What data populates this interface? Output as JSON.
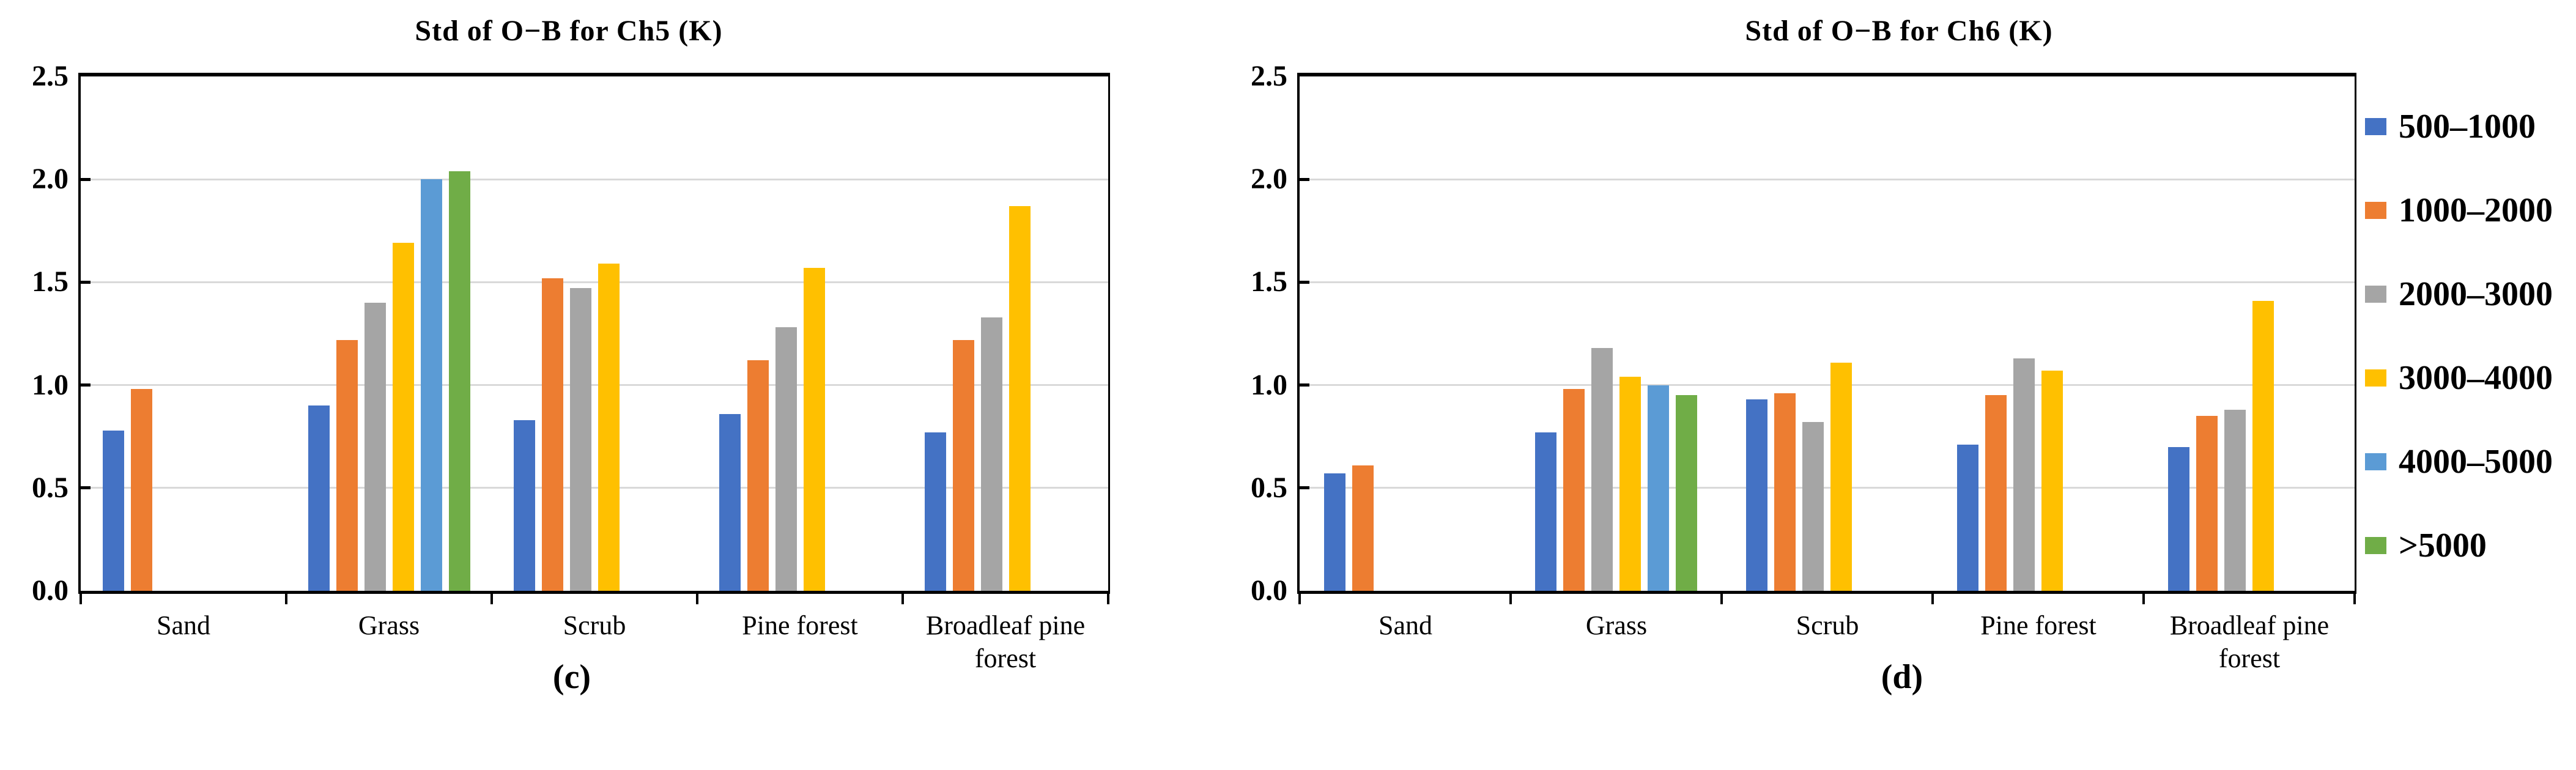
{
  "figure": {
    "background": "#ffffff",
    "grid_color": "#d9d9d9",
    "axis_color": "#000000"
  },
  "legend": {
    "position": "right",
    "entries": [
      {
        "label": "500–1000",
        "color": "#4472C4"
      },
      {
        "label": "1000–2000",
        "color": "#ED7D31"
      },
      {
        "label": "2000–3000",
        "color": "#A5A5A5"
      },
      {
        "label": "3000–4000",
        "color": "#FFC000"
      },
      {
        "label": "4000–5000",
        "color": "#5B9BD5"
      },
      {
        "label": ">5000",
        "color": "#70AD47"
      }
    ]
  },
  "chart_data": [
    {
      "type": "bar",
      "title": "Std of O−B for Ch5 (K)",
      "caption": "(c)",
      "xlabel": "",
      "ylabel": "",
      "ylim": [
        0,
        2.5
      ],
      "y_tick_labels": [
        "2.5",
        "2.0",
        "1.5",
        "1.0",
        "0.5",
        "0.0"
      ],
      "grid": true,
      "categories": [
        "Sand",
        "Grass",
        "Scrub",
        "Pine forest",
        "Broadleaf pine forest"
      ],
      "series": [
        {
          "name": "500–1000",
          "color": "#4472C4",
          "values": [
            0.78,
            0.9,
            0.83,
            0.86,
            0.77
          ]
        },
        {
          "name": "1000–2000",
          "color": "#ED7D31",
          "values": [
            0.98,
            1.22,
            1.52,
            1.12,
            1.22
          ]
        },
        {
          "name": "2000–3000",
          "color": "#A5A5A5",
          "values": [
            null,
            1.4,
            1.47,
            1.28,
            1.33
          ]
        },
        {
          "name": "3000–4000",
          "color": "#FFC000",
          "values": [
            null,
            1.69,
            1.59,
            1.57,
            1.87
          ]
        },
        {
          "name": "4000–5000",
          "color": "#5B9BD5",
          "values": [
            null,
            2.0,
            null,
            null,
            null
          ]
        },
        {
          "name": ">5000",
          "color": "#70AD47",
          "values": [
            null,
            2.04,
            null,
            null,
            null
          ]
        }
      ]
    },
    {
      "type": "bar",
      "title": "Std of O−B for Ch6 (K)",
      "caption": "(d)",
      "xlabel": "",
      "ylabel": "",
      "ylim": [
        0,
        2.5
      ],
      "y_tick_labels": [
        "2.5",
        "2.0",
        "1.5",
        "1.0",
        "0.5",
        "0.0"
      ],
      "grid": true,
      "categories": [
        "Sand",
        "Grass",
        "Scrub",
        "Pine forest",
        "Broadleaf pine forest"
      ],
      "series": [
        {
          "name": "500–1000",
          "color": "#4472C4",
          "values": [
            0.57,
            0.77,
            0.93,
            0.71,
            0.7
          ]
        },
        {
          "name": "1000–2000",
          "color": "#ED7D31",
          "values": [
            0.61,
            0.98,
            0.96,
            0.95,
            0.85
          ]
        },
        {
          "name": "2000–3000",
          "color": "#A5A5A5",
          "values": [
            null,
            1.18,
            0.82,
            1.13,
            0.88
          ]
        },
        {
          "name": "3000–4000",
          "color": "#FFC000",
          "values": [
            null,
            1.04,
            1.11,
            1.07,
            1.41
          ]
        },
        {
          "name": "4000–5000",
          "color": "#5B9BD5",
          "values": [
            null,
            1.0,
            null,
            null,
            null
          ]
        },
        {
          "name": ">5000",
          "color": "#70AD47",
          "values": [
            null,
            0.95,
            null,
            null,
            null
          ]
        }
      ]
    }
  ]
}
